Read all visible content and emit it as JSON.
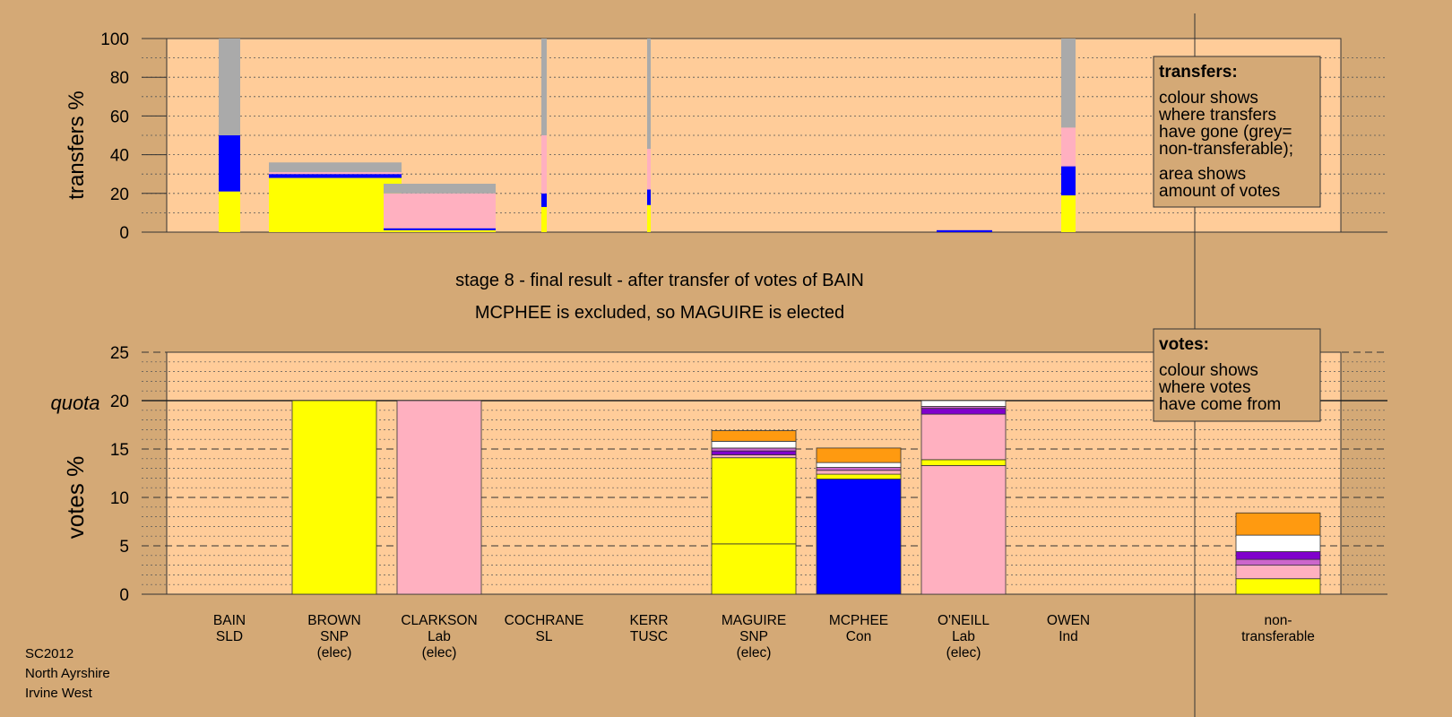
{
  "colors": {
    "background": "#d4a976",
    "panel": "#ffcc99",
    "legend_box": "#d4a976",
    "SNP": "#ffff00",
    "Lab": "#ffb0c0",
    "Con": "#0000ff",
    "SLD": "#ff9a10",
    "SL": "#ffffff",
    "TUSC": "#8000cc",
    "Ind": "#cc66cc",
    "nontransferable": "#aaaaaa"
  },
  "titles": {
    "line1": "stage 8 - final result - after transfer of votes of BAIN",
    "line2": "MCPHEE is excluded, so MAGUIRE is elected"
  },
  "footer": [
    "SC2012",
    "North Ayrshire",
    "Irvine West"
  ],
  "legend_transfers": {
    "title": "transfers:",
    "lines": [
      "colour shows",
      "where transfers",
      "have gone (grey=",
      "non-transferable);"
    ],
    "lines2": [
      "area shows",
      "amount of votes"
    ]
  },
  "legend_votes": {
    "title": "votes:",
    "lines": [
      "colour shows",
      "where votes",
      "have come from"
    ]
  },
  "chart_data": [
    {
      "type": "bar",
      "stacked": true,
      "ylabel": "transfers %",
      "ylim": [
        0,
        100
      ],
      "yticks": [
        0,
        20,
        40,
        60,
        80,
        100
      ],
      "bars": [
        {
          "from": "BAIN",
          "width_share": 0.32,
          "segments": [
            {
              "party": "SNP",
              "value": 21
            },
            {
              "party": "Con",
              "value": 29
            },
            {
              "party": "nontransferable",
              "value": 50
            }
          ]
        },
        {
          "from": "BROWN",
          "width_share": 1.0,
          "segments": [
            {
              "party": "SNP",
              "value": 28
            },
            {
              "party": "Con",
              "value": 2
            },
            {
              "party": "Lab",
              "value": 1
            },
            {
              "party": "nontransferable",
              "value": 5
            }
          ]
        },
        {
          "from": "CLARKSON",
          "width_share": 1.0,
          "segments": [
            {
              "party": "SNP",
              "value": 1
            },
            {
              "party": "Con",
              "value": 1
            },
            {
              "party": "Lab",
              "value": 18
            },
            {
              "party": "nontransferable",
              "value": 5
            }
          ]
        },
        {
          "from": "COCHRANE",
          "width_share": 0.1,
          "segments": [
            {
              "party": "SNP",
              "value": 13
            },
            {
              "party": "Con",
              "value": 7
            },
            {
              "party": "Lab",
              "value": 30
            },
            {
              "party": "nontransferable",
              "value": 50
            }
          ]
        },
        {
          "from": "KERR",
          "width_share": 0.07,
          "segments": [
            {
              "party": "SNP",
              "value": 14
            },
            {
              "party": "Con",
              "value": 8
            },
            {
              "party": "Lab",
              "value": 21
            },
            {
              "party": "nontransferable",
              "value": 57
            }
          ]
        },
        {
          "from": "O'NEILL",
          "width_share": 0.5,
          "segments": [
            {
              "party": "Con",
              "value": 1
            }
          ]
        },
        {
          "from": "OWEN",
          "width_share": 0.3,
          "segments": [
            {
              "party": "SNP",
              "value": 19
            },
            {
              "party": "Con",
              "value": 15
            },
            {
              "party": "Lab",
              "value": 20
            },
            {
              "party": "nontransferable",
              "value": 46
            }
          ]
        }
      ]
    },
    {
      "type": "bar",
      "stacked": true,
      "ylabel": "votes %",
      "quota_label": "quota",
      "quota": 20,
      "ylim": [
        0,
        25
      ],
      "yticks": [
        0,
        5,
        10,
        15,
        20,
        25
      ],
      "categories": [
        {
          "name": "BAIN",
          "party": "SLD",
          "status": ""
        },
        {
          "name": "BROWN",
          "party": "SNP",
          "status": "(elec)"
        },
        {
          "name": "CLARKSON",
          "party": "Lab",
          "status": "(elec)"
        },
        {
          "name": "COCHRANE",
          "party": "SL",
          "status": ""
        },
        {
          "name": "KERR",
          "party": "TUSC",
          "status": ""
        },
        {
          "name": "MAGUIRE",
          "party": "SNP",
          "status": "(elec)"
        },
        {
          "name": "MCPHEE",
          "party": "Con",
          "status": ""
        },
        {
          "name": "O'NEILL",
          "party": "Lab",
          "status": "(elec)"
        },
        {
          "name": "OWEN",
          "party": "Ind",
          "status": ""
        },
        {
          "name": "non-",
          "party": "transferable",
          "status": ""
        }
      ],
      "stacks": [
        [],
        [
          {
            "party": "SNP",
            "value": 20
          }
        ],
        [
          {
            "party": "Lab",
            "value": 20
          }
        ],
        [],
        [],
        [
          {
            "party": "SNP",
            "value": 5.2
          },
          {
            "party": "SNP",
            "value": 8.9
          },
          {
            "party": "Lab",
            "value": 0.3
          },
          {
            "party": "TUSC",
            "value": 0.4
          },
          {
            "party": "Ind",
            "value": 0.3
          },
          {
            "party": "SL",
            "value": 0.7
          },
          {
            "party": "SLD",
            "value": 1.1
          }
        ],
        [
          {
            "party": "Con",
            "value": 11.9
          },
          {
            "party": "SNP",
            "value": 0.5
          },
          {
            "party": "Lab",
            "value": 0.4
          },
          {
            "party": "Ind",
            "value": 0.3
          },
          {
            "party": "SL",
            "value": 0.5
          },
          {
            "party": "SLD",
            "value": 1.5
          }
        ],
        [
          {
            "party": "Lab",
            "value": 13.3
          },
          {
            "party": "SNP",
            "value": 0.6
          },
          {
            "party": "Lab",
            "value": 4.7
          },
          {
            "party": "TUSC",
            "value": 0.6
          },
          {
            "party": "Ind",
            "value": 0.2
          },
          {
            "party": "SL",
            "value": 0.6
          }
        ],
        [],
        [
          {
            "party": "SNP",
            "value": 1.6
          },
          {
            "party": "Lab",
            "value": 1.4
          },
          {
            "party": "Ind",
            "value": 0.6
          },
          {
            "party": "TUSC",
            "value": 0.8
          },
          {
            "party": "SL",
            "value": 1.7
          },
          {
            "party": "SLD",
            "value": 2.3
          }
        ]
      ]
    }
  ]
}
